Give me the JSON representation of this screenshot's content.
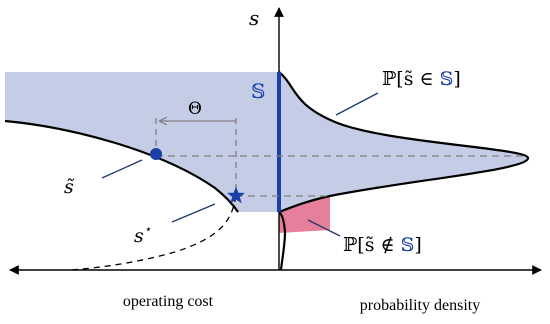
{
  "axes": {
    "y_axis_label": "s",
    "left_axis_caption": "operating cost",
    "right_axis_caption": "probability density"
  },
  "labels": {
    "set_S": "𝕊",
    "theta": "Θ",
    "s_tilde": "s̃",
    "s_star": "s",
    "s_star_superscript": "⋆",
    "prob_in_S_prefix": "ℙ[s̃ ∈ ",
    "prob_in_S_set": "𝕊",
    "prob_in_S_suffix": "]",
    "prob_not_in_S_prefix": "ℙ[s̃ ∉ ",
    "prob_not_in_S_set": "𝕊",
    "prob_not_in_S_suffix": "]"
  },
  "colors": {
    "region_fill": "#c5cde6",
    "set_line": "#1a3fa8",
    "tail_fill": "#e57f9c",
    "curve": "#000000",
    "dashed": "#808080"
  }
}
